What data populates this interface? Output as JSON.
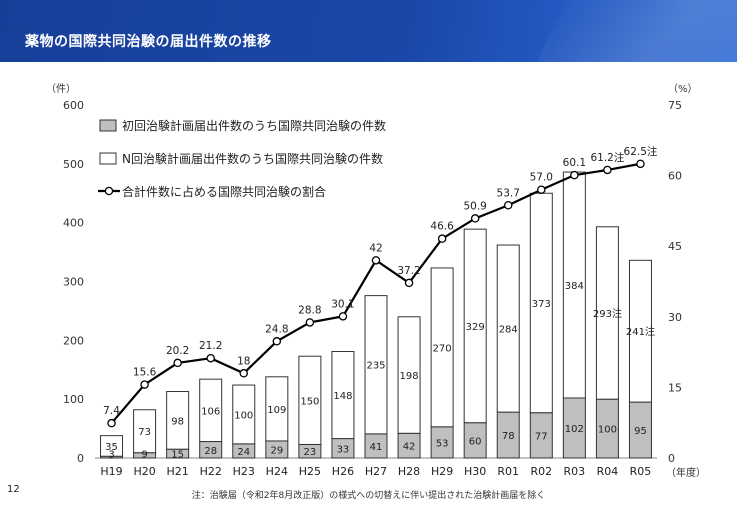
{
  "header": {
    "title": "薬物の国際共同治験の届出件数の推移"
  },
  "page_number": "12",
  "footnote": "注：治験届（令和2年8月改正版）の様式への切替えに伴い提出された治験計画届を除く",
  "chart_data": {
    "type": "bar",
    "stacked": true,
    "categories": [
      "H19",
      "H20",
      "H21",
      "H22",
      "H23",
      "H24",
      "H25",
      "H26",
      "H27",
      "H28",
      "H29",
      "H30",
      "R01",
      "R02",
      "R03",
      "R04",
      "R05"
    ],
    "series": [
      {
        "name": "初回治験計画届出件数のうち国際共同治験の件数",
        "color": "#bfbfbf",
        "values": [
          3,
          9,
          15,
          28,
          24,
          29,
          23,
          33,
          41,
          42,
          53,
          60,
          78,
          77,
          102,
          100,
          95
        ],
        "labels": [
          "3",
          "9",
          "15",
          "28",
          "24",
          "29",
          "23",
          "33",
          "41",
          "42",
          "53",
          "60",
          "78",
          "77",
          "102",
          "100",
          "95"
        ]
      },
      {
        "name": "N回治験計画届出件数のうち国際共同治験の件数",
        "color": "#ffffff",
        "values": [
          35,
          73,
          98,
          106,
          100,
          109,
          150,
          148,
          235,
          198,
          270,
          329,
          284,
          373,
          384,
          293,
          241
        ],
        "labels": [
          "35",
          "73",
          "98",
          "106",
          "100",
          "109",
          "150",
          "148",
          "235",
          "198",
          "270",
          "329",
          "284",
          "373",
          "384",
          "293注",
          "241注"
        ]
      },
      {
        "name": "合計件数に占める国際共同治験の割合",
        "type": "line",
        "axis": "right",
        "values": [
          7.4,
          15.6,
          20.2,
          21.2,
          18,
          24.8,
          28.8,
          30.1,
          42,
          37.2,
          46.6,
          50.9,
          53.7,
          57.0,
          60.1,
          61.2,
          62.5
        ],
        "labels": [
          "7.4",
          "15.6",
          "20.2",
          "21.2",
          "18",
          "24.8",
          "28.8",
          "30.1",
          "42",
          "37.2",
          "46.6",
          "50.9",
          "53.7",
          "57.0",
          "60.1",
          "61.2注",
          "62.5注"
        ]
      }
    ],
    "y_left": {
      "label": "（件）",
      "ticks": [
        "0",
        "100",
        "200",
        "300",
        "400",
        "500",
        "600"
      ],
      "lim": [
        0,
        600
      ]
    },
    "y_right": {
      "label": "（%）",
      "ticks": [
        "0",
        "15",
        "30",
        "45",
        "60",
        "75"
      ],
      "lim": [
        0,
        75
      ]
    },
    "x_unit_label": "（年度）",
    "legend_position": "top-left",
    "grid": false
  }
}
